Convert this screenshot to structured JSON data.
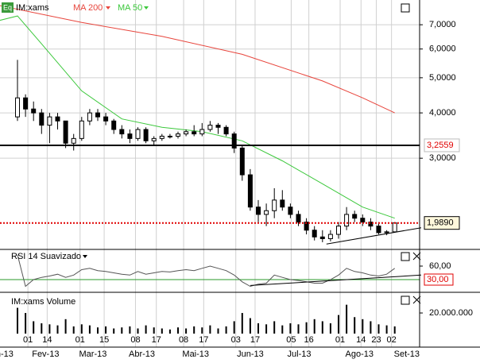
{
  "chart_data": [
    {
      "type": "candlestick",
      "icon": "Eq",
      "log": true,
      "series": [
        {
          "name": "IM:xams",
          "color": "#000000",
          "open": [
            3.9,
            4.4,
            4.1,
            4.0,
            3.7,
            3.9,
            3.8,
            3.3,
            3.4,
            3.8,
            4.0,
            3.9,
            3.8,
            3.6,
            3.5,
            3.4,
            3.6,
            3.35,
            3.4,
            3.45,
            3.45,
            3.5,
            3.55,
            3.5,
            3.6,
            3.7,
            3.65,
            3.5,
            3.2,
            2.7,
            2.2,
            2.1,
            2.15,
            2.3,
            2.2,
            2.1,
            2.0,
            1.9,
            1.82,
            1.8,
            1.85,
            1.95,
            2.1,
            2.05,
            2.0,
            1.95,
            1.87,
            1.88
          ],
          "high": [
            5.6,
            4.5,
            4.3,
            4.1,
            4.0,
            4.0,
            3.8,
            3.5,
            3.9,
            4.1,
            4.1,
            4.0,
            3.85,
            3.7,
            3.6,
            3.65,
            3.65,
            3.45,
            3.5,
            3.5,
            3.55,
            3.6,
            3.7,
            3.75,
            3.8,
            3.75,
            3.7,
            3.55,
            3.25,
            2.8,
            2.3,
            2.25,
            2.48,
            2.45,
            2.25,
            2.15,
            2.05,
            1.95,
            1.9,
            1.9,
            2.0,
            2.2,
            2.15,
            2.1,
            2.05,
            2.0,
            1.9,
            2.0
          ],
          "low": [
            3.8,
            3.9,
            3.8,
            3.5,
            3.3,
            3.6,
            3.2,
            3.15,
            3.35,
            3.7,
            3.8,
            3.7,
            3.5,
            3.4,
            3.3,
            3.35,
            3.3,
            3.25,
            3.35,
            3.4,
            3.4,
            3.45,
            3.45,
            3.45,
            3.55,
            3.5,
            3.45,
            3.1,
            2.6,
            2.15,
            2.0,
            1.95,
            2.05,
            2.15,
            2.05,
            1.95,
            1.85,
            1.78,
            1.76,
            1.77,
            1.8,
            1.9,
            2.0,
            1.95,
            1.9,
            1.85,
            1.84,
            1.87
          ],
          "close": [
            4.4,
            4.1,
            4.0,
            3.7,
            3.9,
            3.8,
            3.3,
            3.4,
            3.8,
            4.0,
            3.9,
            3.8,
            3.6,
            3.5,
            3.4,
            3.6,
            3.35,
            3.4,
            3.45,
            3.45,
            3.5,
            3.55,
            3.5,
            3.6,
            3.7,
            3.65,
            3.5,
            3.2,
            2.7,
            2.2,
            2.1,
            2.15,
            2.3,
            2.2,
            2.1,
            2.0,
            1.9,
            1.82,
            1.8,
            1.85,
            1.95,
            2.1,
            2.05,
            2.0,
            1.95,
            1.87,
            1.88,
            1.989
          ]
        }
      ],
      "lines": [
        {
          "name": "MA 200",
          "color": "#e8453c",
          "x": [
            -2.2,
            8,
            18,
            28,
            38,
            43,
            47
          ],
          "values": [
            7.9,
            7.1,
            6.5,
            5.8,
            4.9,
            4.4,
            4.0
          ]
        },
        {
          "name": "MA 50",
          "color": "#3cc83c",
          "x": [
            -2.2,
            0,
            3,
            8,
            13,
            18,
            23,
            28,
            33,
            38,
            43,
            47
          ],
          "values": [
            7.2,
            7.4,
            6.2,
            4.6,
            3.85,
            3.65,
            3.55,
            3.35,
            2.95,
            2.55,
            2.2,
            2.05
          ]
        }
      ],
      "hlines": [
        {
          "value": 3.2559,
          "label": "3,2559"
        },
        {
          "value": 1.989,
          "label": "1,9890"
        }
      ],
      "trendline": {
        "x": [
          38.5,
          50.3
        ],
        "values": [
          1.74,
          1.93
        ]
      },
      "ylim": [
        1.69,
        8.19
      ],
      "yticks": [
        {
          "value": 3,
          "label": "3,0000"
        },
        {
          "value": 4,
          "label": "4,0000"
        },
        {
          "value": 5,
          "label": "5,0000"
        },
        {
          "value": 6,
          "label": "6,0000"
        },
        {
          "value": 7,
          "label": "7,0000"
        }
      ]
    },
    {
      "type": "line",
      "title": "RSI 14 Suavizado",
      "values": [
        85,
        15,
        30,
        35,
        38,
        42,
        35,
        40,
        52,
        55,
        50,
        48,
        45,
        42,
        40,
        48,
        42,
        45,
        48,
        47,
        50,
        52,
        50,
        55,
        60,
        55,
        50,
        40,
        25,
        15,
        20,
        22,
        40,
        35,
        30,
        28,
        25,
        22,
        22,
        30,
        40,
        55,
        48,
        45,
        40,
        38,
        42,
        55
      ],
      "level": {
        "value": 30,
        "label": "30,00"
      },
      "trendline": {
        "x": [
          29,
          50.3
        ],
        "values": [
          17,
          40
        ]
      },
      "ylim": [
        5.3,
        93.5
      ],
      "yticks": [
        {
          "value": 60,
          "label": "60,00"
        }
      ]
    },
    {
      "type": "bar",
      "title": "IM:xams Volume",
      "values": [
        25000000,
        20000000,
        12000000,
        10000000,
        9000000,
        8000000,
        14000000,
        7000000,
        9000000,
        8000000,
        6000000,
        7000000,
        5000000,
        6000000,
        7000000,
        5000000,
        8000000,
        6000000,
        5000000,
        4000000,
        6000000,
        5000000,
        7000000,
        6000000,
        8000000,
        5000000,
        7000000,
        12000000,
        20000000,
        15000000,
        10000000,
        9000000,
        12000000,
        8000000,
        10000000,
        9000000,
        11000000,
        14000000,
        12000000,
        10000000,
        18000000,
        28000000,
        16000000,
        14000000,
        12000000,
        9000000,
        8000000,
        7000000
      ],
      "ylim": [
        0,
        38500000
      ],
      "yticks": [
        {
          "value": 20000000,
          "label": "20.000.000"
        }
      ],
      "xticks": [
        {
          "value": 1.3,
          "label": "01"
        },
        {
          "value": 3.7,
          "label": "14"
        },
        {
          "value": 7.8,
          "label": "01"
        },
        {
          "value": 10.8,
          "label": "15"
        },
        {
          "value": 14.7,
          "label": "08"
        },
        {
          "value": 17.3,
          "label": "17"
        },
        {
          "value": 20.7,
          "label": "08"
        },
        {
          "value": 23.2,
          "label": "17"
        },
        {
          "value": 27.2,
          "label": "03"
        },
        {
          "value": 29.6,
          "label": "17"
        },
        {
          "value": 34.1,
          "label": "05"
        },
        {
          "value": 36.3,
          "label": "16"
        },
        {
          "value": 40.2,
          "label": "01"
        },
        {
          "value": 42.8,
          "label": "14"
        },
        {
          "value": 44.7,
          "label": "23"
        },
        {
          "value": 46.6,
          "label": "02"
        }
      ],
      "month_ticks": [
        {
          "value": -1.6,
          "label": "n-13"
        },
        {
          "value": 3.5,
          "label": "Fev-13"
        },
        {
          "value": 9.4,
          "label": "Mar-13"
        },
        {
          "value": 15.5,
          "label": "Abr-13"
        },
        {
          "value": 22.2,
          "label": "Mai-13"
        },
        {
          "value": 29,
          "label": "Jun-13"
        },
        {
          "value": 35.1,
          "label": "Jul-13"
        },
        {
          "value": 42.6,
          "label": "Ago-13"
        },
        {
          "value": 48.5,
          "label": "Set-13"
        }
      ]
    }
  ]
}
